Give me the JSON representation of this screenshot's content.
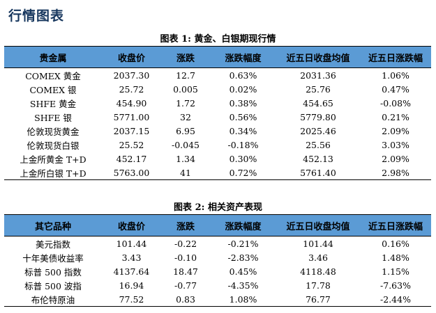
{
  "page_title": "行情图表",
  "table1": {
    "caption": "图表 1:  黄金、白银期现行情",
    "headers": [
      "贵金属",
      "收盘价",
      "涨跌",
      "涨跌幅度",
      "近五日收盘均值",
      "近五日涨跌幅"
    ],
    "rows": [
      [
        "COMEX 黄金",
        "2037.30",
        "12.7",
        "0.63%",
        "2031.36",
        "1.06%"
      ],
      [
        "COMEX 银",
        "25.72",
        "0.005",
        "0.02%",
        "25.76",
        "0.47%"
      ],
      [
        "SHFE 黄金",
        "454.90",
        "1.72",
        "0.38%",
        "454.65",
        "-0.08%"
      ],
      [
        "SHFE 银",
        "5771.00",
        "32",
        "0.56%",
        "5779.80",
        "0.21%"
      ],
      [
        "伦敦现货黄金",
        "2037.15",
        "6.95",
        "0.34%",
        "2025.46",
        "2.09%"
      ],
      [
        "伦敦现货白银",
        "25.52",
        "-0.045",
        "-0.18%",
        "25.56",
        "3.03%"
      ],
      [
        "上金所黄金 T+D",
        "452.17",
        "1.34",
        "0.30%",
        "452.13",
        "2.09%"
      ],
      [
        "上金所白银 T+D",
        "5763.00",
        "41",
        "0.72%",
        "5761.40",
        "2.98%"
      ]
    ]
  },
  "table2": {
    "caption": "图表 2:  相关资产表现",
    "headers": [
      "其它品种",
      "收盘价",
      "涨跌",
      "涨跌幅度",
      "近五日收盘均值",
      "近五日涨跌幅"
    ],
    "rows": [
      [
        "美元指数",
        "101.44",
        "-0.22",
        "-0.21%",
        "101.44",
        "0.16%"
      ],
      [
        "十年美债收益率",
        "3.43",
        "-0.10",
        "-2.83%",
        "3.46",
        "1.48%"
      ],
      [
        "标普 500 指数",
        "4137.64",
        "18.47",
        "0.45%",
        "4118.48",
        "1.15%"
      ],
      [
        "标普 500 波指",
        "16.94",
        "-0.77",
        "-4.35%",
        "17.78",
        "-7.63%"
      ],
      [
        "布伦特原油",
        "77.52",
        "0.83",
        "1.08%",
        "76.77",
        "-2.44%"
      ]
    ]
  },
  "colors": {
    "header_bg": "#5b9bd5",
    "title": "#17375e"
  }
}
